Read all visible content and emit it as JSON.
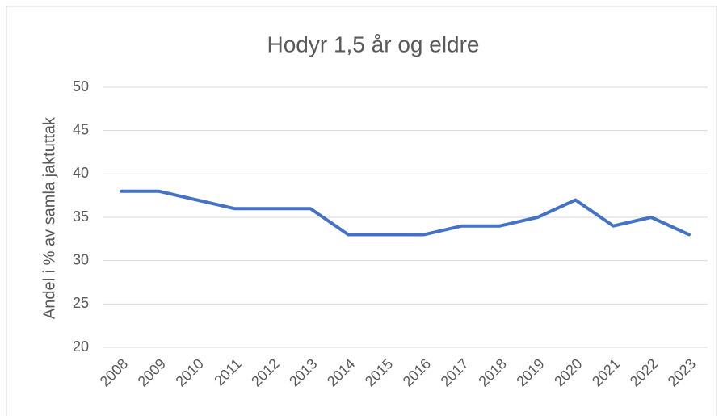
{
  "chart_data": {
    "type": "line",
    "title": "Hodyr 1,5 år og eldre",
    "y_label": "Andel i % av samla jaktuttak",
    "categories": [
      "2008",
      "2009",
      "2010",
      "2011",
      "2012",
      "2013",
      "2014",
      "2015",
      "2016",
      "2017",
      "2018",
      "2019",
      "2020",
      "2021",
      "2022",
      "2023"
    ],
    "series": [
      {
        "name": "Hodyr 1,5 år og eldre",
        "color": "#4472c4",
        "values": [
          38,
          38,
          37,
          36,
          36,
          36,
          33,
          33,
          33,
          34,
          34,
          35,
          37,
          34,
          35,
          33
        ]
      }
    ],
    "ylim": [
      20,
      50
    ],
    "yticks": [
      20,
      25,
      30,
      35,
      40,
      45,
      50
    ],
    "grid": true
  }
}
